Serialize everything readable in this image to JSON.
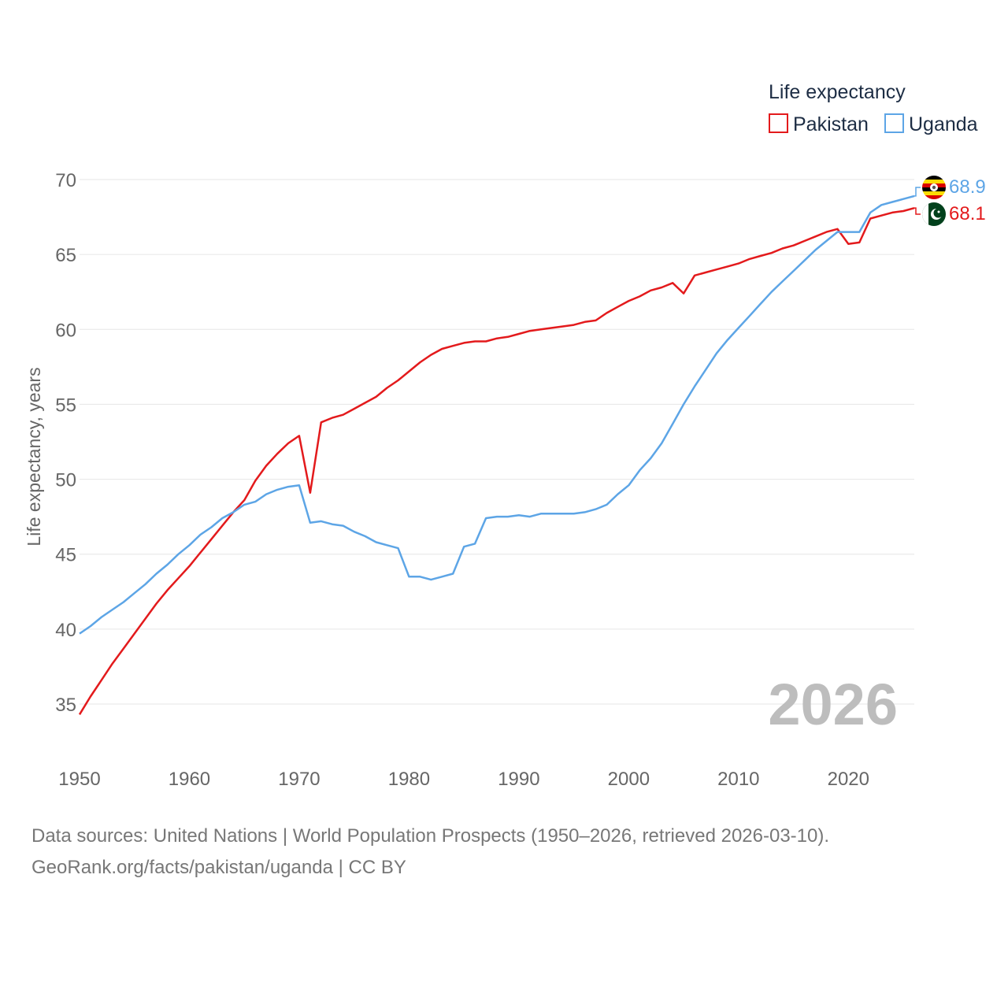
{
  "footer": {
    "sources": "Data sources: United Nations | World Population Prospects (1950–2026, retrieved 2026-03-10).",
    "credit": "GeoRank.org/facts/pakistan/uganda | CC BY"
  },
  "chart_data": {
    "type": "line",
    "title": "",
    "xlabel": "",
    "ylabel": "Life expectancy, years",
    "xlim": [
      1950,
      2026
    ],
    "ylim": [
      32,
      71
    ],
    "y_ticks": [
      35,
      40,
      45,
      50,
      55,
      60,
      65,
      70
    ],
    "x_ticks": [
      1950,
      1960,
      1970,
      1980,
      1990,
      2000,
      2010,
      2020
    ],
    "grid": true,
    "legend": {
      "title": "Life expectancy",
      "position": "top-right"
    },
    "current_year_label": "2026",
    "colors": {
      "Pakistan": "#e31a1c",
      "Uganda": "#5da5e6",
      "grid": "#e6e6e6"
    },
    "x": [
      1950,
      1951,
      1952,
      1953,
      1954,
      1955,
      1956,
      1957,
      1958,
      1959,
      1960,
      1961,
      1962,
      1963,
      1964,
      1965,
      1966,
      1967,
      1968,
      1969,
      1970,
      1971,
      1972,
      1973,
      1974,
      1975,
      1976,
      1977,
      1978,
      1979,
      1980,
      1981,
      1982,
      1983,
      1984,
      1985,
      1986,
      1987,
      1988,
      1989,
      1990,
      1991,
      1992,
      1993,
      1994,
      1995,
      1996,
      1997,
      1998,
      1999,
      2000,
      2001,
      2002,
      2003,
      2004,
      2005,
      2006,
      2007,
      2008,
      2009,
      2010,
      2011,
      2012,
      2013,
      2014,
      2015,
      2016,
      2017,
      2018,
      2019,
      2020,
      2021,
      2022,
      2023,
      2024,
      2025,
      2026
    ],
    "series": [
      {
        "name": "Pakistan",
        "end_label": "68.1",
        "flag_icon": "pakistan-flag-icon",
        "values": [
          34.3,
          35.5,
          36.6,
          37.7,
          38.7,
          39.7,
          40.7,
          41.7,
          42.6,
          43.4,
          44.2,
          45.1,
          46.0,
          46.9,
          47.8,
          48.6,
          49.9,
          50.9,
          51.7,
          52.4,
          52.9,
          49.1,
          53.8,
          54.1,
          54.3,
          54.7,
          55.1,
          55.5,
          56.1,
          56.6,
          57.2,
          57.8,
          58.3,
          58.7,
          58.9,
          59.1,
          59.2,
          59.2,
          59.4,
          59.5,
          59.7,
          59.9,
          60.0,
          60.1,
          60.2,
          60.3,
          60.5,
          60.6,
          61.1,
          61.5,
          61.9,
          62.2,
          62.6,
          62.8,
          63.1,
          62.4,
          63.6,
          63.8,
          64.0,
          64.2,
          64.4,
          64.7,
          64.9,
          65.1,
          65.4,
          65.6,
          65.9,
          66.2,
          66.5,
          66.7,
          65.7,
          65.8,
          67.4,
          67.6,
          67.8,
          67.9,
          68.1
        ]
      },
      {
        "name": "Uganda",
        "end_label": "68.9",
        "flag_icon": "uganda-flag-icon",
        "values": [
          39.7,
          40.2,
          40.8,
          41.3,
          41.8,
          42.4,
          43.0,
          43.7,
          44.3,
          45.0,
          45.6,
          46.3,
          46.8,
          47.4,
          47.8,
          48.3,
          48.5,
          49.0,
          49.3,
          49.5,
          49.6,
          47.1,
          47.2,
          47.0,
          46.9,
          46.5,
          46.2,
          45.8,
          45.6,
          45.4,
          43.5,
          43.5,
          43.3,
          43.5,
          43.7,
          45.5,
          45.7,
          47.4,
          47.5,
          47.5,
          47.6,
          47.5,
          47.7,
          47.7,
          47.7,
          47.7,
          47.8,
          48.0,
          48.3,
          49.0,
          49.6,
          50.6,
          51.4,
          52.4,
          53.7,
          55.0,
          56.2,
          57.3,
          58.4,
          59.3,
          60.1,
          60.9,
          61.7,
          62.5,
          63.2,
          63.9,
          64.6,
          65.3,
          65.9,
          66.5,
          66.5,
          66.5,
          67.8,
          68.3,
          68.5,
          68.7,
          68.9
        ]
      }
    ]
  }
}
